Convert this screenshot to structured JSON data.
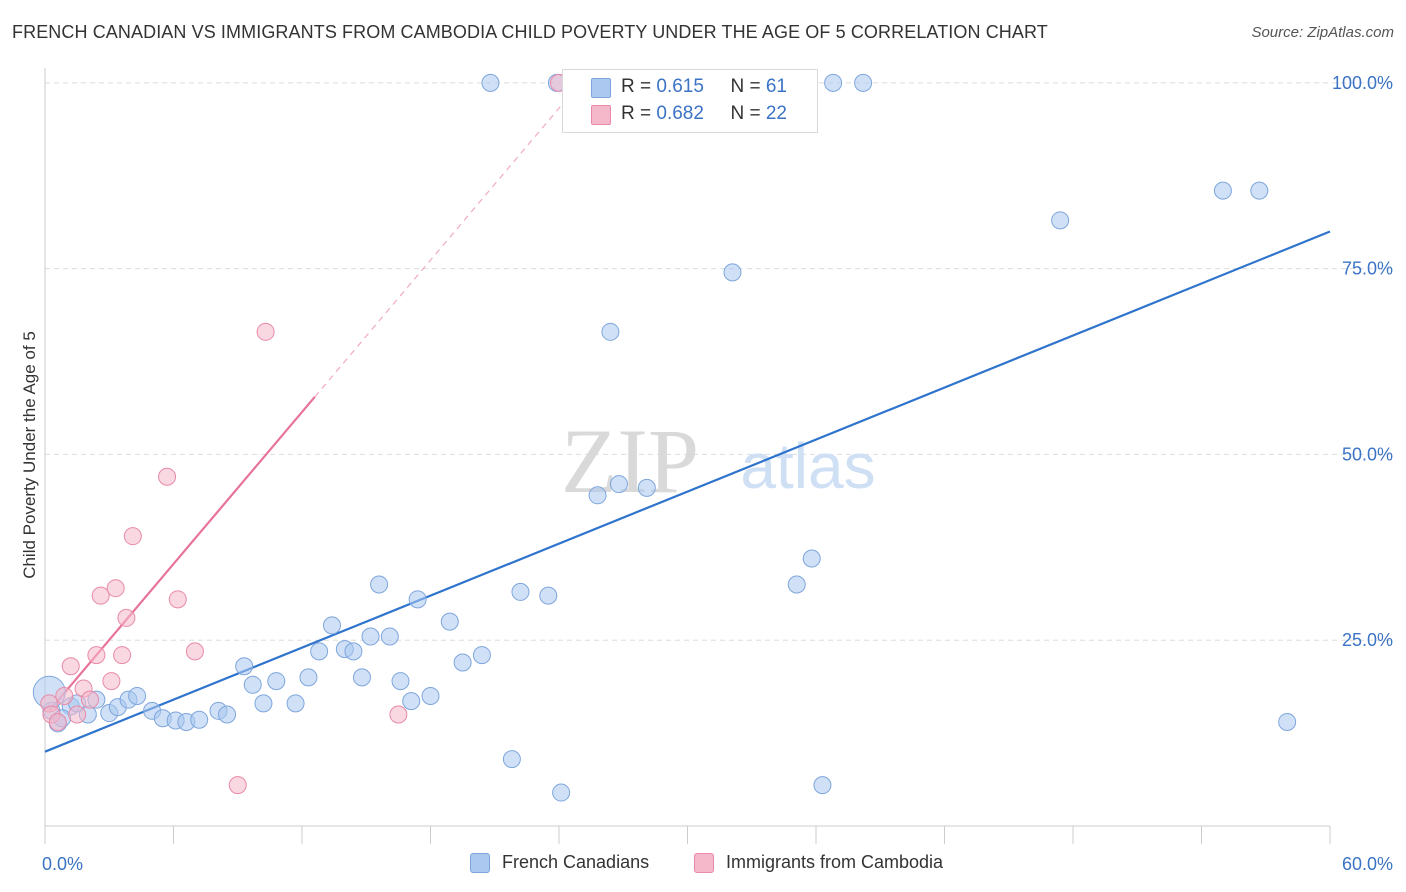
{
  "title": "FRENCH CANADIAN VS IMMIGRANTS FROM CAMBODIA CHILD POVERTY UNDER THE AGE OF 5 CORRELATION CHART",
  "source": "Source: ZipAtlas.com",
  "watermark": {
    "zip": "ZIP",
    "atlas": "atlas"
  },
  "legend_top": {
    "rows": [
      {
        "r_label": "R = ",
        "r_value": "0.615",
        "n_label": "N = ",
        "n_value": "61",
        "color": "#aac8f0"
      },
      {
        "r_label": "R = ",
        "r_value": "0.682",
        "n_label": "N = ",
        "n_value": "22",
        "color": "#f5b8cb"
      }
    ]
  },
  "legend_bottom": {
    "items": [
      "French Canadians",
      "Immigrants from Cambodia"
    ]
  },
  "colors": {
    "blue_fill": "#aac8f0",
    "blue_stroke": "#7ea6dc",
    "blue_line": "#2f74cc",
    "pink_fill": "#f5b8cb",
    "pink_stroke": "#e88aa8",
    "pink_line": "#e8739a",
    "axis_text": "#3b73c5",
    "grid": "#dddddd"
  },
  "chart_data": {
    "type": "scatter",
    "title": "FRENCH CANADIAN VS IMMIGRANTS FROM CAMBODIA CHILD POVERTY UNDER THE AGE OF 5 CORRELATION CHART",
    "xlabel": "",
    "ylabel": "Child Poverty Under the Age of 5",
    "xlim": [
      0,
      60
    ],
    "ylim": [
      0,
      102
    ],
    "x_tick_labels": [
      "0.0%",
      "60.0%"
    ],
    "y_ticks": [
      25,
      50,
      75,
      100
    ],
    "y_tick_labels": [
      "25.0%",
      "50.0%",
      "75.0%",
      "100.0%"
    ],
    "grid": true,
    "legend_placement": "bottom",
    "series": [
      {
        "name": "French Canadians",
        "r": 0.615,
        "n": 61,
        "trend": {
          "x": [
            0,
            60
          ],
          "y": [
            10,
            80
          ]
        },
        "points": [
          [
            0.3,
            15.5
          ],
          [
            0.6,
            13.8
          ],
          [
            1.2,
            16.1
          ],
          [
            1.5,
            16.5
          ],
          [
            2.0,
            15.0
          ],
          [
            2.4,
            17.0
          ],
          [
            3.0,
            15.2
          ],
          [
            3.4,
            16.0
          ],
          [
            3.9,
            17.0
          ],
          [
            4.3,
            17.5
          ],
          [
            5.0,
            15.5
          ],
          [
            5.5,
            14.5
          ],
          [
            6.1,
            14.2
          ],
          [
            6.6,
            14.0
          ],
          [
            7.2,
            14.3
          ],
          [
            8.1,
            15.5
          ],
          [
            8.5,
            15.0
          ],
          [
            9.3,
            21.5
          ],
          [
            9.7,
            19.0
          ],
          [
            10.2,
            16.5
          ],
          [
            10.8,
            19.5
          ],
          [
            11.7,
            16.5
          ],
          [
            12.3,
            20.0
          ],
          [
            12.8,
            23.5
          ],
          [
            13.4,
            27.0
          ],
          [
            14.0,
            23.8
          ],
          [
            14.4,
            23.5
          ],
          [
            14.8,
            20.0
          ],
          [
            15.2,
            25.5
          ],
          [
            15.6,
            32.5
          ],
          [
            16.1,
            25.5
          ],
          [
            16.6,
            19.5
          ],
          [
            17.1,
            16.8
          ],
          [
            17.4,
            30.5
          ],
          [
            18.0,
            17.5
          ],
          [
            18.9,
            27.5
          ],
          [
            19.5,
            22.0
          ],
          [
            20.4,
            23.0
          ],
          [
            20.8,
            100.0
          ],
          [
            21.8,
            9.0
          ],
          [
            22.2,
            31.5
          ],
          [
            23.5,
            31.0
          ],
          [
            23.9,
            100.0
          ],
          [
            24.1,
            4.5
          ],
          [
            25.8,
            44.5
          ],
          [
            26.4,
            66.5
          ],
          [
            26.8,
            46.0
          ],
          [
            28.1,
            45.5
          ],
          [
            29.5,
            100.0
          ],
          [
            32.1,
            74.5
          ],
          [
            35.1,
            32.5
          ],
          [
            35.8,
            36.0
          ],
          [
            36.3,
            5.5
          ],
          [
            36.8,
            100.0
          ],
          [
            38.2,
            100.0
          ],
          [
            47.4,
            81.5
          ],
          [
            55.0,
            85.5
          ],
          [
            56.7,
            85.5
          ],
          [
            58.0,
            14.0
          ],
          [
            0.2,
            18.0
          ],
          [
            0.8,
            14.5
          ]
        ]
      },
      {
        "name": "Immigrants from Cambodia",
        "r": 0.682,
        "n": 22,
        "trend": {
          "x": [
            0.2,
            25
          ],
          "y": [
            15.5,
            100
          ]
        },
        "points": [
          [
            0.2,
            16.5
          ],
          [
            0.3,
            15.0
          ],
          [
            0.6,
            14.0
          ],
          [
            0.9,
            17.5
          ],
          [
            1.2,
            21.5
          ],
          [
            1.5,
            15.0
          ],
          [
            1.8,
            18.5
          ],
          [
            2.1,
            17.0
          ],
          [
            2.4,
            23.0
          ],
          [
            2.6,
            31.0
          ],
          [
            3.1,
            19.5
          ],
          [
            3.3,
            32.0
          ],
          [
            3.6,
            23.0
          ],
          [
            3.8,
            28.0
          ],
          [
            4.1,
            39.0
          ],
          [
            5.7,
            47.0
          ],
          [
            6.2,
            30.5
          ],
          [
            7.0,
            23.5
          ],
          [
            9.0,
            5.5
          ],
          [
            10.3,
            66.5
          ],
          [
            16.5,
            15.0
          ],
          [
            24.0,
            100.0
          ]
        ]
      }
    ]
  }
}
